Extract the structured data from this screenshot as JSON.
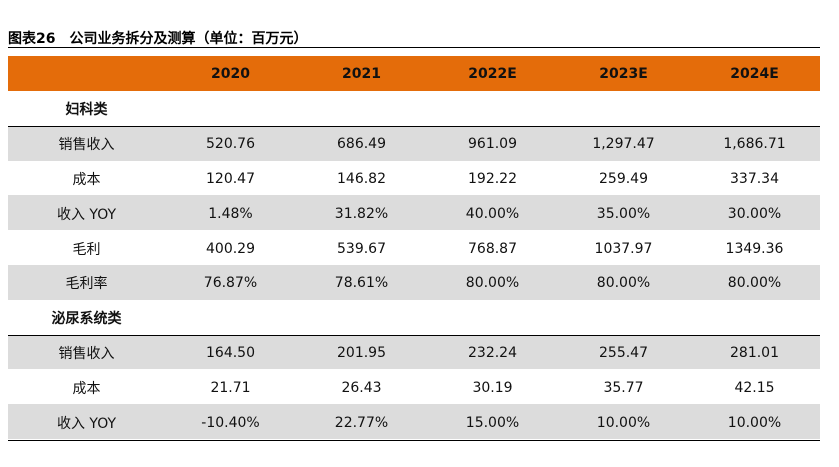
{
  "header": {
    "title": "图表26　公司业务拆分及测算（单位：百万元）"
  },
  "table": {
    "columns": [
      "2020",
      "2021",
      "2022E",
      "2023E",
      "2024E"
    ],
    "sections": [
      {
        "name": "妇科类",
        "rows": [
          {
            "label": "销售收入",
            "values": [
              "520.76",
              "686.49",
              "961.09",
              "1,297.47",
              "1,686.71"
            ]
          },
          {
            "label": "成本",
            "values": [
              "120.47",
              "146.82",
              "192.22",
              "259.49",
              "337.34"
            ]
          },
          {
            "label": "收入 YOY",
            "values": [
              "1.48%",
              "31.82%",
              "40.00%",
              "35.00%",
              "30.00%"
            ]
          },
          {
            "label": "毛利",
            "values": [
              "400.29",
              "539.67",
              "768.87",
              "1037.97",
              "1349.36"
            ]
          },
          {
            "label": "毛利率",
            "values": [
              "76.87%",
              "78.61%",
              "80.00%",
              "80.00%",
              "80.00%"
            ]
          }
        ]
      },
      {
        "name": "泌尿系统类",
        "rows": [
          {
            "label": "销售收入",
            "values": [
              "164.50",
              "201.95",
              "232.24",
              "255.47",
              "281.01"
            ]
          },
          {
            "label": "成本",
            "values": [
              "21.71",
              "26.43",
              "30.19",
              "35.77",
              "42.15"
            ]
          },
          {
            "label": "收入 YOY",
            "values": [
              "-10.40%",
              "22.77%",
              "15.00%",
              "10.00%",
              "10.00%"
            ]
          }
        ]
      }
    ]
  }
}
